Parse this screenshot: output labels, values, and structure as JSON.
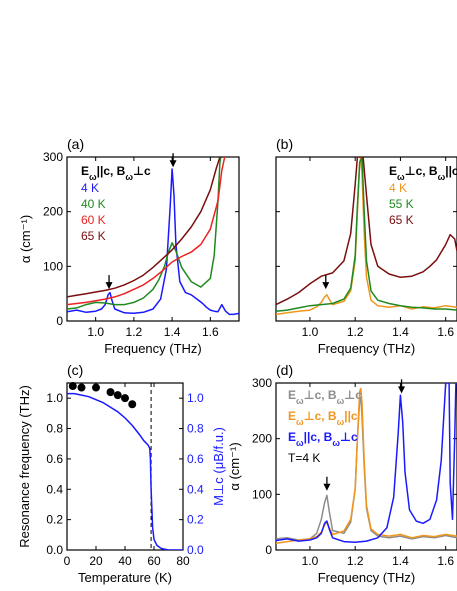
{
  "colors": {
    "black": "#000000",
    "blue": "#1a1aff",
    "green": "#1f8a1f",
    "red": "#ee2222",
    "darkred": "#7a0e0e",
    "orange": "#f0961e",
    "gray": "#8c8c8c"
  },
  "chart_data": [
    {
      "id": "a",
      "panel_label": "(a)",
      "type": "line",
      "xlabel": "Frequency (THz)",
      "ylabel": "α (cm⁻¹)",
      "xlim": [
        0.85,
        1.75
      ],
      "ylim": [
        0,
        300
      ],
      "xticks": [
        1.0,
        1.2,
        1.4,
        1.6
      ],
      "xtick_labels": [
        "1.0",
        "1.2",
        "1.4",
        "1.6"
      ],
      "yticks": [
        0,
        100,
        200,
        300
      ],
      "ytick_labels": [
        "0",
        "100",
        "200",
        "300"
      ],
      "legend_title": "Eω||c, Bω⊥c",
      "legend_location": "top-left",
      "arrows": [
        {
          "x": 1.07,
          "y": 62
        },
        {
          "x": 1.405,
          "y": 285
        }
      ],
      "series": [
        {
          "name": "4 K",
          "color_key": "blue",
          "x": [
            0.85,
            0.9,
            0.95,
            1.0,
            1.03,
            1.05,
            1.065,
            1.075,
            1.085,
            1.1,
            1.15,
            1.2,
            1.25,
            1.3,
            1.34,
            1.37,
            1.39,
            1.4,
            1.41,
            1.42,
            1.44,
            1.47,
            1.5,
            1.53,
            1.56,
            1.58,
            1.6,
            1.62,
            1.64,
            1.66,
            1.68,
            1.7,
            1.72,
            1.75
          ],
          "y": [
            17,
            20,
            16,
            18,
            22,
            30,
            48,
            52,
            38,
            22,
            15,
            14,
            16,
            22,
            40,
            95,
            210,
            278,
            230,
            140,
            72,
            52,
            48,
            40,
            32,
            25,
            20,
            18,
            17,
            30,
            18,
            12,
            12,
            14
          ]
        },
        {
          "name": "40 K",
          "color_key": "green",
          "x": [
            0.85,
            0.9,
            0.95,
            1.0,
            1.05,
            1.1,
            1.15,
            1.2,
            1.25,
            1.3,
            1.33,
            1.36,
            1.38,
            1.4,
            1.42,
            1.45,
            1.5,
            1.55,
            1.6,
            1.62,
            1.64,
            1.65,
            1.655
          ],
          "y": [
            22,
            24,
            30,
            34,
            33,
            30,
            30,
            34,
            42,
            58,
            75,
            100,
            125,
            143,
            128,
            98,
            72,
            62,
            78,
            120,
            220,
            290,
            300
          ]
        },
        {
          "name": "60 K",
          "color_key": "red",
          "x": [
            0.85,
            0.9,
            0.95,
            1.0,
            1.05,
            1.1,
            1.15,
            1.2,
            1.25,
            1.3,
            1.35,
            1.4,
            1.45,
            1.5,
            1.55,
            1.6,
            1.64,
            1.66,
            1.675,
            1.68
          ],
          "y": [
            30,
            32,
            34,
            37,
            40,
            44,
            50,
            58,
            66,
            78,
            92,
            108,
            118,
            126,
            140,
            168,
            220,
            275,
            300,
            300
          ]
        },
        {
          "name": "65 K",
          "color_key": "darkred",
          "x": [
            0.85,
            0.9,
            0.95,
            1.0,
            1.05,
            1.1,
            1.15,
            1.2,
            1.25,
            1.3,
            1.35,
            1.4,
            1.45,
            1.5,
            1.55,
            1.6,
            1.63,
            1.65,
            1.66
          ],
          "y": [
            44,
            47,
            50,
            53,
            56,
            60,
            66,
            74,
            84,
            98,
            114,
            130,
            150,
            172,
            200,
            240,
            278,
            300,
            300
          ]
        }
      ]
    },
    {
      "id": "b",
      "panel_label": "(b)",
      "type": "line",
      "xlabel": "Frequency (THz)",
      "ylabel": "",
      "xlim": [
        0.85,
        1.65
      ],
      "ylim": [
        0,
        300
      ],
      "xticks": [
        1.0,
        1.2,
        1.4,
        1.6
      ],
      "xtick_labels": [
        "1.0",
        "1.2",
        "1.4",
        "1.6"
      ],
      "yticks": [
        0,
        100,
        200,
        300
      ],
      "ytick_labels": [],
      "legend_title": "Eω⊥c, Bω||c",
      "legend_location": "top-right",
      "arrows": [
        {
          "x": 1.07,
          "y": 62
        }
      ],
      "series": [
        {
          "name": "4 K",
          "color_key": "orange",
          "x": [
            0.85,
            0.9,
            0.95,
            1.0,
            1.03,
            1.05,
            1.065,
            1.075,
            1.085,
            1.1,
            1.15,
            1.18,
            1.2,
            1.21,
            1.22,
            1.225,
            1.23,
            1.24,
            1.25,
            1.27,
            1.3,
            1.35,
            1.4,
            1.45,
            1.5,
            1.55,
            1.6,
            1.65
          ],
          "y": [
            12,
            15,
            18,
            20,
            26,
            34,
            44,
            48,
            40,
            30,
            36,
            55,
            110,
            200,
            290,
            300,
            270,
            160,
            80,
            38,
            28,
            25,
            28,
            22,
            26,
            24,
            28,
            25
          ]
        },
        {
          "name": "55 K",
          "color_key": "green",
          "x": [
            0.85,
            0.9,
            0.95,
            1.0,
            1.05,
            1.1,
            1.15,
            1.18,
            1.2,
            1.21,
            1.22,
            1.23,
            1.24,
            1.25,
            1.27,
            1.3,
            1.35,
            1.4,
            1.45,
            1.5,
            1.55,
            1.6,
            1.65
          ],
          "y": [
            18,
            20,
            24,
            28,
            30,
            32,
            40,
            60,
            120,
            210,
            290,
            300,
            200,
            110,
            55,
            38,
            32,
            28,
            25,
            24,
            22,
            22,
            20
          ]
        },
        {
          "name": "65 K",
          "color_key": "darkred",
          "x": [
            0.85,
            0.9,
            0.95,
            1.0,
            1.05,
            1.1,
            1.15,
            1.18,
            1.2,
            1.21,
            1.22,
            1.225,
            1.235,
            1.25,
            1.27,
            1.3,
            1.35,
            1.4,
            1.45,
            1.5,
            1.53,
            1.56,
            1.6,
            1.62,
            1.64,
            1.65
          ],
          "y": [
            30,
            40,
            52,
            68,
            82,
            88,
            110,
            160,
            250,
            300,
            300,
            300,
            300,
            230,
            140,
            100,
            86,
            80,
            82,
            90,
            100,
            112,
            140,
            158,
            150,
            128
          ]
        }
      ]
    },
    {
      "id": "c",
      "panel_label": "(c)",
      "type": "scatter",
      "xlabel": "Temperature (K)",
      "ylabel": "Resonance frequency (THz)",
      "y2label": "M⊥c (μB/f.u.)",
      "xlim": [
        0,
        80
      ],
      "ylim": [
        0,
        1.1
      ],
      "y2lim": [
        0,
        1.1
      ],
      "xticks": [
        0,
        20,
        40,
        60,
        80
      ],
      "xtick_labels": [
        "0",
        "20",
        "40",
        "60",
        "80"
      ],
      "yticks": [
        0,
        0.2,
        0.4,
        0.6,
        0.8,
        1.0
      ],
      "ytick_labels": [
        "0.0",
        "0.2",
        "0.4",
        "0.6",
        "0.8",
        "1.0"
      ],
      "y2ticks": [
        0,
        0.2,
        0.4,
        0.6,
        0.8,
        1.0
      ],
      "y2tick_labels": [
        "0.0",
        "0.2",
        "0.4",
        "0.6",
        "0.8",
        "1.0"
      ],
      "dashed_vline_x": 58,
      "series": [
        {
          "kind": "points",
          "color_key": "black",
          "x": [
            4,
            10,
            20,
            30,
            35,
            40,
            45
          ],
          "y": [
            1.08,
            1.07,
            1.07,
            1.04,
            1.02,
            1.0,
            0.96
          ]
        },
        {
          "kind": "line",
          "axis": "right",
          "color_key": "blue",
          "x": [
            0,
            5,
            10,
            15,
            20,
            25,
            30,
            35,
            40,
            45,
            50,
            53,
            55,
            56,
            57,
            57.5,
            58,
            59,
            60,
            62,
            65,
            70,
            80
          ],
          "y": [
            1.03,
            1.03,
            1.02,
            1.01,
            0.99,
            0.97,
            0.94,
            0.91,
            0.87,
            0.82,
            0.76,
            0.72,
            0.7,
            0.69,
            0.67,
            0.6,
            0.4,
            0.15,
            0.07,
            0.03,
            0.01,
            0.0,
            0.0
          ]
        }
      ]
    },
    {
      "id": "d",
      "panel_label": "(d)",
      "type": "line",
      "xlabel": "Frequency (THz)",
      "ylabel": "α (cm⁻¹)",
      "xlim": [
        0.85,
        1.65
      ],
      "ylim": [
        0,
        300
      ],
      "xticks": [
        1.0,
        1.2,
        1.4,
        1.6
      ],
      "xtick_labels": [
        "1.0",
        "1.2",
        "1.4",
        "1.6"
      ],
      "yticks": [
        0,
        100,
        200,
        300
      ],
      "ytick_labels": [
        "0",
        "100",
        "200",
        "300"
      ],
      "legend_location": "top-left",
      "legend_note": "T=4 K",
      "arrows": [
        {
          "x": 1.075,
          "y": 110
        },
        {
          "x": 1.405,
          "y": 285
        }
      ],
      "series": [
        {
          "name": "Eω⊥c, Bω⊥c",
          "color_key": "gray",
          "x": [
            0.85,
            0.9,
            0.95,
            1.0,
            1.03,
            1.05,
            1.065,
            1.075,
            1.085,
            1.1,
            1.15,
            1.18,
            1.2,
            1.21,
            1.22,
            1.225,
            1.23,
            1.24,
            1.25,
            1.27,
            1.3,
            1.35,
            1.4,
            1.45,
            1.5,
            1.55,
            1.6,
            1.65
          ],
          "y": [
            20,
            22,
            18,
            20,
            30,
            55,
            85,
            98,
            70,
            35,
            30,
            50,
            110,
            200,
            270,
            275,
            240,
            150,
            75,
            35,
            25,
            22,
            25,
            20,
            24,
            22,
            26,
            22
          ]
        },
        {
          "name": "Eω⊥c, Bω||c",
          "color_key": "orange",
          "x": [
            0.85,
            0.9,
            0.95,
            1.0,
            1.03,
            1.05,
            1.065,
            1.075,
            1.085,
            1.1,
            1.15,
            1.18,
            1.2,
            1.21,
            1.22,
            1.225,
            1.23,
            1.24,
            1.25,
            1.27,
            1.3,
            1.35,
            1.4,
            1.45,
            1.5,
            1.55,
            1.6,
            1.65
          ],
          "y": [
            12,
            15,
            18,
            20,
            24,
            32,
            45,
            50,
            40,
            28,
            34,
            55,
            110,
            200,
            285,
            290,
            265,
            160,
            80,
            38,
            28,
            25,
            28,
            22,
            26,
            24,
            28,
            25
          ]
        },
        {
          "name": "Eω||c, Bω⊥c",
          "color_key": "blue",
          "x": [
            0.85,
            0.9,
            0.95,
            1.0,
            1.03,
            1.05,
            1.065,
            1.075,
            1.085,
            1.1,
            1.15,
            1.2,
            1.25,
            1.3,
            1.34,
            1.37,
            1.39,
            1.4,
            1.41,
            1.42,
            1.44,
            1.47,
            1.5,
            1.53,
            1.56,
            1.58,
            1.6,
            1.61,
            1.615,
            1.62,
            1.63,
            1.64,
            1.645,
            1.65
          ],
          "y": [
            17,
            20,
            16,
            18,
            22,
            30,
            48,
            52,
            38,
            22,
            15,
            14,
            16,
            22,
            40,
            95,
            210,
            278,
            230,
            140,
            72,
            52,
            48,
            55,
            90,
            160,
            300,
            300,
            300,
            120,
            55,
            200,
            300,
            300
          ]
        }
      ]
    }
  ]
}
